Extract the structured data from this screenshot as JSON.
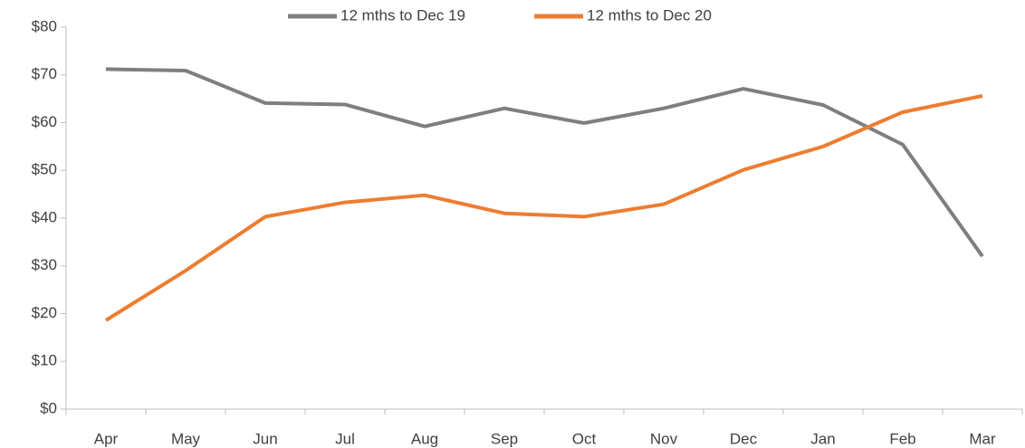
{
  "chart_data": {
    "type": "line",
    "categories": [
      "Apr",
      "May",
      "Jun",
      "Jul",
      "Aug",
      "Sep",
      "Oct",
      "Nov",
      "Dec",
      "Jan",
      "Feb",
      "Mar"
    ],
    "series": [
      {
        "name": "12 mths to Dec 19",
        "color": "#7f7f7f",
        "values": [
          71.2,
          70.9,
          64.1,
          63.8,
          59.2,
          63.0,
          59.9,
          63.0,
          67.1,
          63.7,
          55.4,
          32.0
        ]
      },
      {
        "name": "12 mths to Dec 20",
        "color": "#ed7d31",
        "values": [
          18.6,
          29.0,
          40.3,
          43.3,
          44.8,
          41.0,
          40.3,
          42.9,
          50.1,
          55.0,
          62.2,
          65.6
        ]
      }
    ],
    "ylim": [
      0,
      80
    ],
    "yticks": [
      {
        "value": 0,
        "label": "$0"
      },
      {
        "value": 10,
        "label": "$10"
      },
      {
        "value": 20,
        "label": "$20"
      },
      {
        "value": 30,
        "label": "$30"
      },
      {
        "value": 40,
        "label": "$40"
      },
      {
        "value": 50,
        "label": "$50"
      },
      {
        "value": 60,
        "label": "$60"
      },
      {
        "value": 70,
        "label": "$70"
      },
      {
        "value": 80,
        "label": "$80"
      }
    ],
    "grid": false,
    "legend": "top"
  }
}
